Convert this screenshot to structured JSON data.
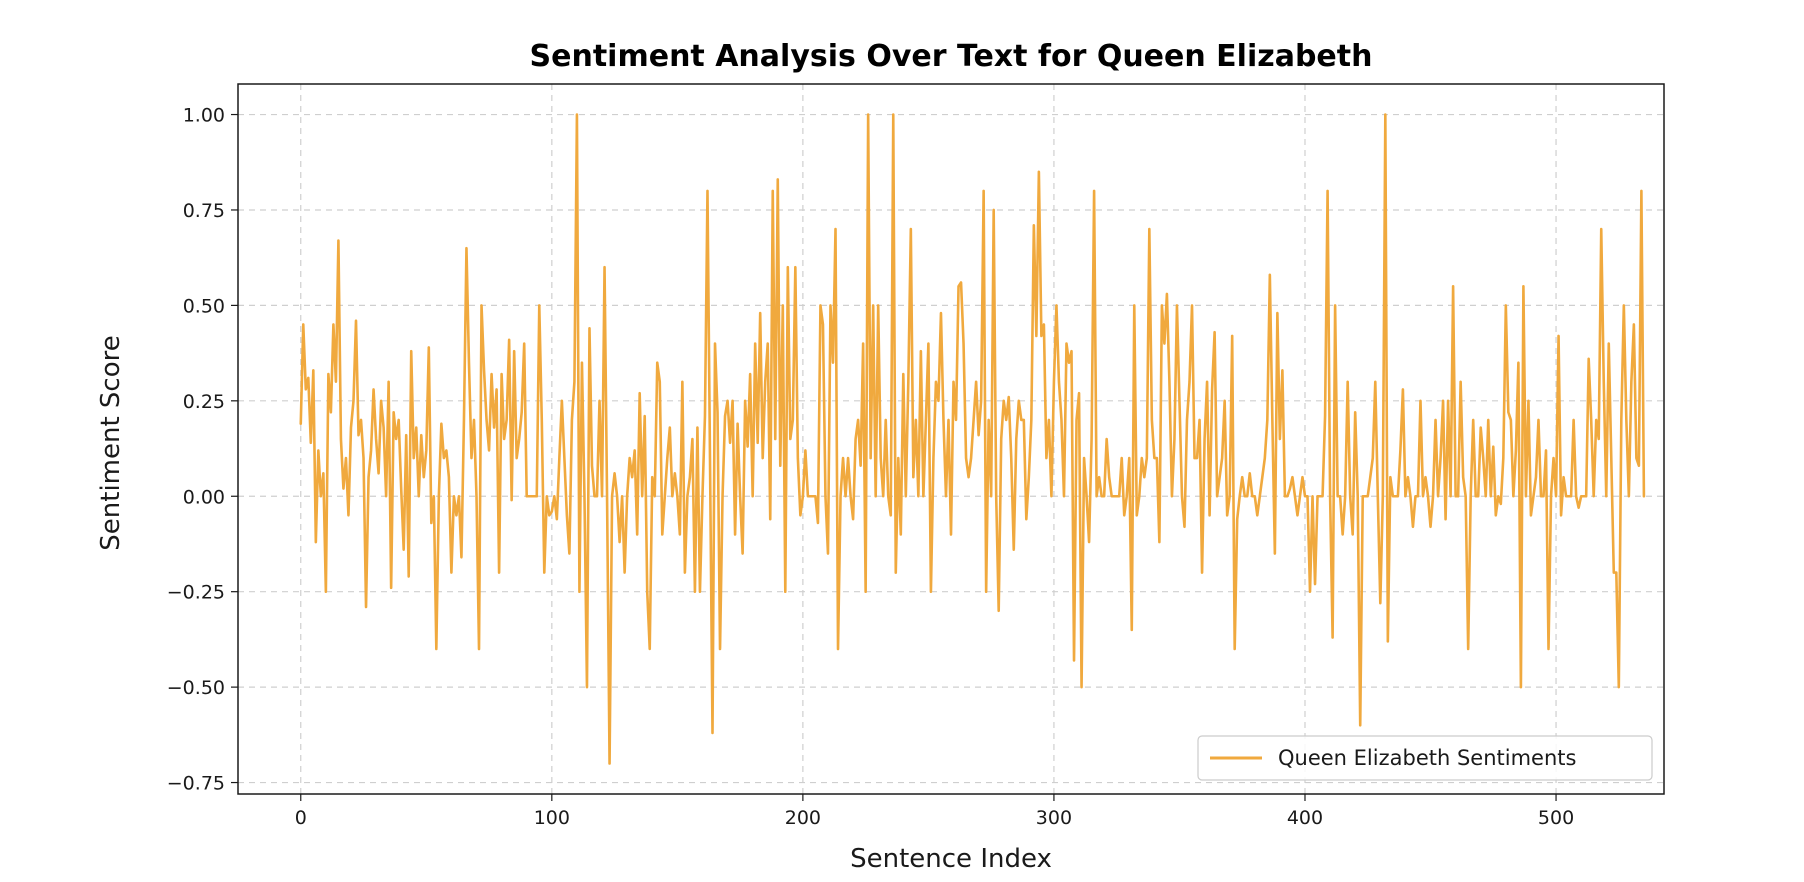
{
  "chart_data": {
    "type": "line",
    "title": "Sentiment Analysis Over Text for Queen Elizabeth",
    "xlabel": "Sentence Index",
    "ylabel": "Sentiment Score",
    "xlim": [
      -25,
      543
    ],
    "ylim": [
      -0.78,
      1.08
    ],
    "xticks": [
      0,
      100,
      200,
      300,
      400,
      500
    ],
    "xtick_labels": [
      "0",
      "100",
      "200",
      "300",
      "400",
      "500"
    ],
    "yticks": [
      -0.75,
      -0.5,
      -0.25,
      0.0,
      0.25,
      0.5,
      0.75,
      1.0
    ],
    "ytick_labels": [
      "−0.75",
      "−0.50",
      "−0.25",
      "0.00",
      "0.25",
      "0.50",
      "0.75",
      "1.00"
    ],
    "grid": true,
    "legend_position": "lower-right",
    "series": [
      {
        "name": "Queen Elizabeth Sentiments",
        "color": "#f0a93e",
        "x_start": 0,
        "x_step": 1,
        "values": [
          0.19,
          0.45,
          0.28,
          0.31,
          0.14,
          0.33,
          -0.12,
          0.12,
          0.0,
          0.06,
          -0.25,
          0.32,
          0.22,
          0.45,
          0.3,
          0.67,
          0.15,
          0.02,
          0.1,
          -0.05,
          0.18,
          0.25,
          0.46,
          0.16,
          0.2,
          0.1,
          -0.29,
          0.05,
          0.12,
          0.28,
          0.15,
          0.06,
          0.25,
          0.18,
          0.0,
          0.3,
          -0.24,
          0.22,
          0.15,
          0.2,
          0.02,
          -0.14,
          0.16,
          -0.21,
          0.38,
          0.1,
          0.18,
          0.0,
          0.16,
          0.05,
          0.12,
          0.39,
          -0.07,
          0.0,
          -0.4,
          0.0,
          0.19,
          0.1,
          0.12,
          0.05,
          -0.2,
          0.0,
          -0.05,
          0.0,
          -0.16,
          0.2,
          0.65,
          0.35,
          0.1,
          0.2,
          0.0,
          -0.4,
          0.5,
          0.33,
          0.2,
          0.12,
          0.32,
          0.18,
          0.28,
          -0.2,
          0.32,
          0.15,
          0.2,
          0.41,
          -0.01,
          0.38,
          0.1,
          0.15,
          0.22,
          0.4,
          0.0,
          0.0,
          0.0,
          0.0,
          0.0,
          0.5,
          0.2,
          -0.2,
          0.0,
          -0.05,
          -0.04,
          0.0,
          -0.06,
          0.1,
          0.25,
          0.1,
          -0.05,
          -0.15,
          0.2,
          0.3,
          1.0,
          -0.25,
          0.35,
          0.0,
          -0.5,
          0.44,
          0.08,
          0.0,
          0.0,
          0.25,
          0.0,
          0.6,
          0.0,
          -0.7,
          0.0,
          0.06,
          0.0,
          -0.12,
          0.0,
          -0.2,
          0.0,
          0.1,
          0.05,
          0.12,
          -0.1,
          0.27,
          0.0,
          0.21,
          -0.25,
          -0.4,
          0.05,
          0.0,
          0.35,
          0.3,
          -0.1,
          0.0,
          0.1,
          0.18,
          0.0,
          0.06,
          0.0,
          -0.1,
          0.3,
          -0.2,
          0.0,
          0.05,
          0.15,
          -0.25,
          0.18,
          -0.25,
          0.0,
          0.21,
          0.8,
          0.1,
          -0.62,
          0.4,
          0.22,
          -0.4,
          0.0,
          0.21,
          0.25,
          0.14,
          0.25,
          -0.1,
          0.19,
          0.0,
          -0.15,
          0.25,
          0.13,
          0.32,
          0.0,
          0.4,
          0.14,
          0.48,
          0.1,
          0.3,
          0.4,
          -0.06,
          0.8,
          0.15,
          0.83,
          0.08,
          0.5,
          -0.25,
          0.6,
          0.15,
          0.2,
          0.6,
          0.1,
          -0.05,
          0.0,
          0.12,
          0.0,
          0.0,
          0.0,
          0.0,
          -0.07,
          0.5,
          0.45,
          0.0,
          -0.15,
          0.5,
          0.35,
          0.7,
          -0.4,
          0.0,
          0.1,
          0.0,
          0.1,
          0.0,
          -0.06,
          0.15,
          0.2,
          0.08,
          0.4,
          -0.25,
          1.0,
          0.1,
          0.5,
          0.0,
          0.5,
          0.1,
          0.0,
          0.2,
          0.0,
          -0.05,
          1.0,
          -0.2,
          0.1,
          -0.1,
          0.32,
          0.0,
          0.3,
          0.7,
          0.05,
          0.2,
          0.0,
          0.38,
          0.0,
          0.2,
          0.4,
          -0.25,
          0.1,
          0.3,
          0.25,
          0.48,
          0.2,
          0.0,
          0.2,
          -0.1,
          0.3,
          0.2,
          0.55,
          0.56,
          0.4,
          0.1,
          0.05,
          0.1,
          0.2,
          0.3,
          0.16,
          0.25,
          0.8,
          -0.25,
          0.2,
          0.0,
          0.75,
          0.0,
          -0.3,
          0.15,
          0.25,
          0.2,
          0.26,
          0.1,
          -0.14,
          0.15,
          0.25,
          0.2,
          0.2,
          -0.06,
          0.05,
          0.2,
          0.71,
          0.42,
          0.85,
          0.42,
          0.45,
          0.1,
          0.2,
          0.0,
          0.3,
          0.5,
          0.3,
          0.2,
          0.0,
          0.4,
          0.35,
          0.38,
          -0.43,
          0.2,
          0.27,
          -0.5,
          0.1,
          0.0,
          -0.12,
          0.15,
          0.8,
          0.0,
          0.05,
          0.0,
          0.0,
          0.15,
          0.05,
          0.0,
          0.0,
          0.0,
          0.0,
          0.1,
          -0.05,
          0.0,
          0.1,
          -0.35,
          0.5,
          -0.05,
          0.0,
          0.1,
          0.05,
          0.1,
          0.7,
          0.2,
          0.1,
          0.1,
          -0.12,
          0.5,
          0.4,
          0.53,
          0.3,
          0.0,
          0.15,
          0.5,
          0.25,
          0.0,
          -0.08,
          0.2,
          0.3,
          0.5,
          0.1,
          0.1,
          0.2,
          -0.2,
          0.15,
          0.3,
          -0.05,
          0.28,
          0.43,
          0.0,
          0.05,
          0.1,
          0.25,
          -0.05,
          0.0,
          0.42,
          -0.4,
          -0.06,
          0.0,
          0.05,
          0.0,
          0.0,
          0.06,
          0.0,
          0.0,
          -0.05,
          0.0,
          0.05,
          0.1,
          0.2,
          0.58,
          0.2,
          -0.15,
          0.48,
          0.15,
          0.33,
          0.0,
          0.0,
          0.02,
          0.05,
          0.0,
          -0.05,
          0.0,
          0.05,
          0.0,
          0.0,
          -0.25,
          0.0,
          -0.23,
          0.0,
          0.0,
          0.0,
          0.21,
          0.8,
          0.0,
          -0.37,
          0.5,
          0.0,
          0.0,
          -0.1,
          0.0,
          0.3,
          0.0,
          -0.1,
          0.22,
          0.0,
          -0.6,
          0.0,
          0.0,
          0.0,
          0.05,
          0.1,
          0.3,
          0.0,
          -0.28,
          0.0,
          1.0,
          -0.38,
          0.05,
          0.0,
          0.0,
          0.0,
          0.12,
          0.28,
          0.0,
          0.05,
          0.0,
          -0.08,
          0.0,
          0.0,
          0.25,
          0.0,
          0.05,
          0.0,
          -0.08,
          0.0,
          0.2,
          0.0,
          0.1,
          0.25,
          -0.06,
          0.25,
          0.0,
          0.55,
          0.0,
          0.0,
          0.3,
          0.05,
          0.0,
          -0.4,
          0.0,
          0.2,
          0.0,
          0.0,
          0.18,
          0.1,
          0.0,
          0.2,
          0.0,
          0.13,
          -0.05,
          0.0,
          -0.02,
          0.1,
          0.5,
          0.22,
          0.2,
          0.0,
          0.12,
          0.35,
          -0.5,
          0.55,
          0.0,
          0.25,
          -0.05,
          0.0,
          0.05,
          0.2,
          0.0,
          0.0,
          0.12,
          -0.4,
          0.0,
          0.1,
          0.0,
          0.42,
          -0.05,
          0.05,
          0.0,
          0.0,
          0.0,
          0.2,
          0.0,
          -0.03,
          0.0,
          0.0,
          0.0,
          0.36,
          0.2,
          0.0,
          0.2,
          0.15,
          0.7,
          0.3,
          0.0,
          0.4,
          0.1,
          -0.2,
          -0.2,
          -0.5,
          0.2,
          0.5,
          0.2,
          0.0,
          0.3,
          0.45,
          0.1,
          0.08,
          0.8,
          0.0
        ]
      }
    ]
  }
}
